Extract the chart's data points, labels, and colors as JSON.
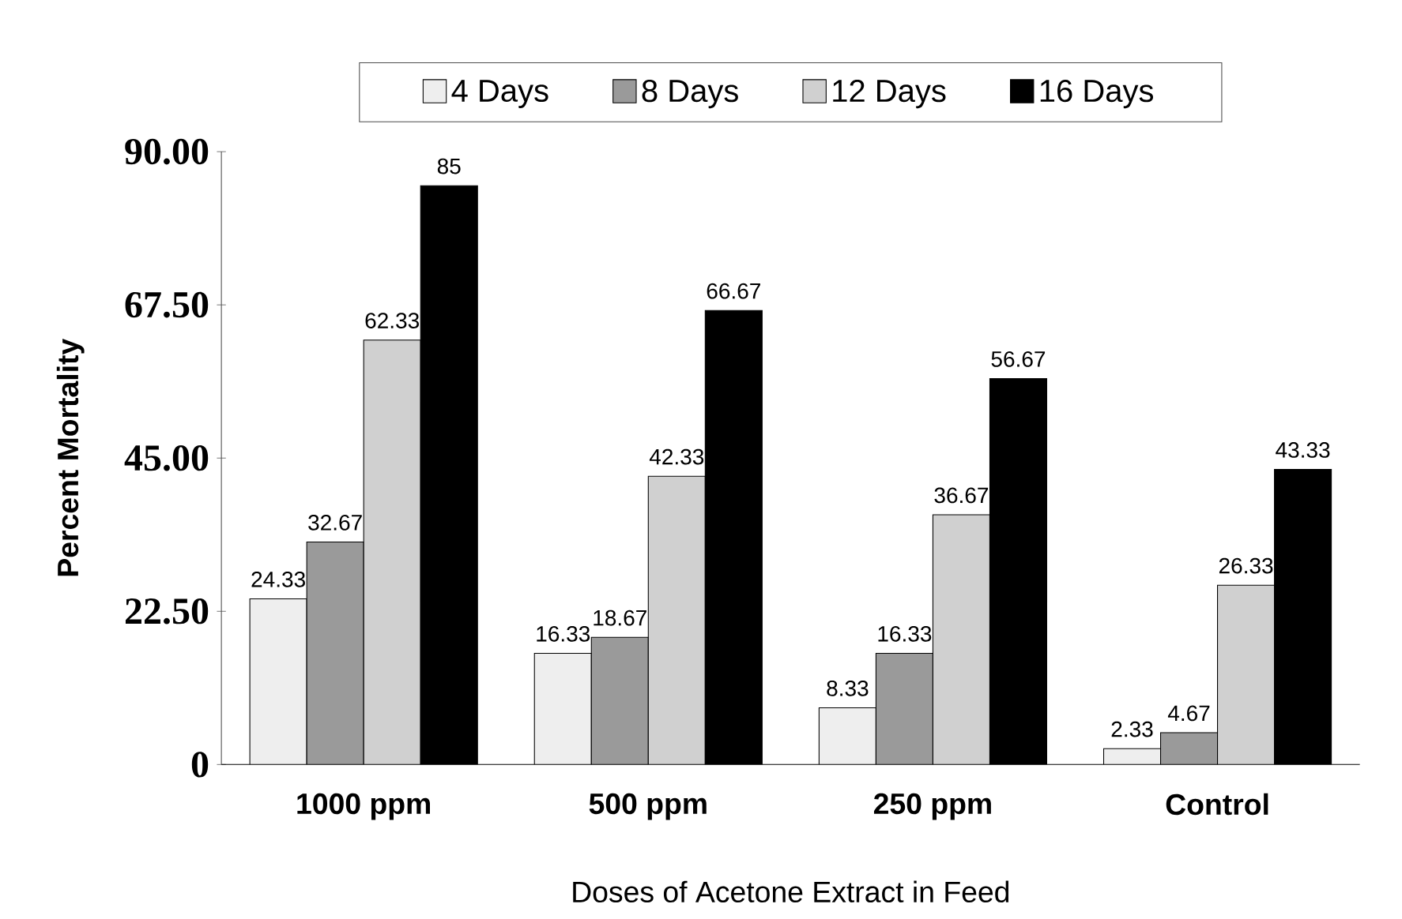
{
  "chart_data": {
    "type": "bar",
    "xlabel": "Doses of Acetone Extract in Feed",
    "ylabel": "Percent Mortality",
    "categories": [
      "1000 ppm",
      "500 ppm",
      "250 ppm",
      "Control"
    ],
    "series": [
      {
        "name": "4 Days",
        "color": "#eeeeee",
        "values": [
          24.33,
          16.33,
          8.33,
          2.33
        ]
      },
      {
        "name": "8 Days",
        "color": "#9a9a9a",
        "values": [
          32.67,
          18.67,
          16.33,
          4.67
        ]
      },
      {
        "name": "12 Days",
        "color": "#d0d0d0",
        "values": [
          62.33,
          42.33,
          36.67,
          26.33
        ]
      },
      {
        "name": "16 Days",
        "color": "#000000",
        "values": [
          85,
          66.67,
          56.67,
          43.33
        ]
      }
    ],
    "ylim": [
      0,
      90
    ],
    "yticks": [
      {
        "value": 0,
        "label": "0"
      },
      {
        "value": 22.5,
        "label": "22.50"
      },
      {
        "value": 45,
        "label": "45.00"
      },
      {
        "value": 67.5,
        "label": "67.50"
      },
      {
        "value": 90,
        "label": "90.00"
      }
    ],
    "data_labels": true,
    "legend": "top",
    "grid": false
  }
}
